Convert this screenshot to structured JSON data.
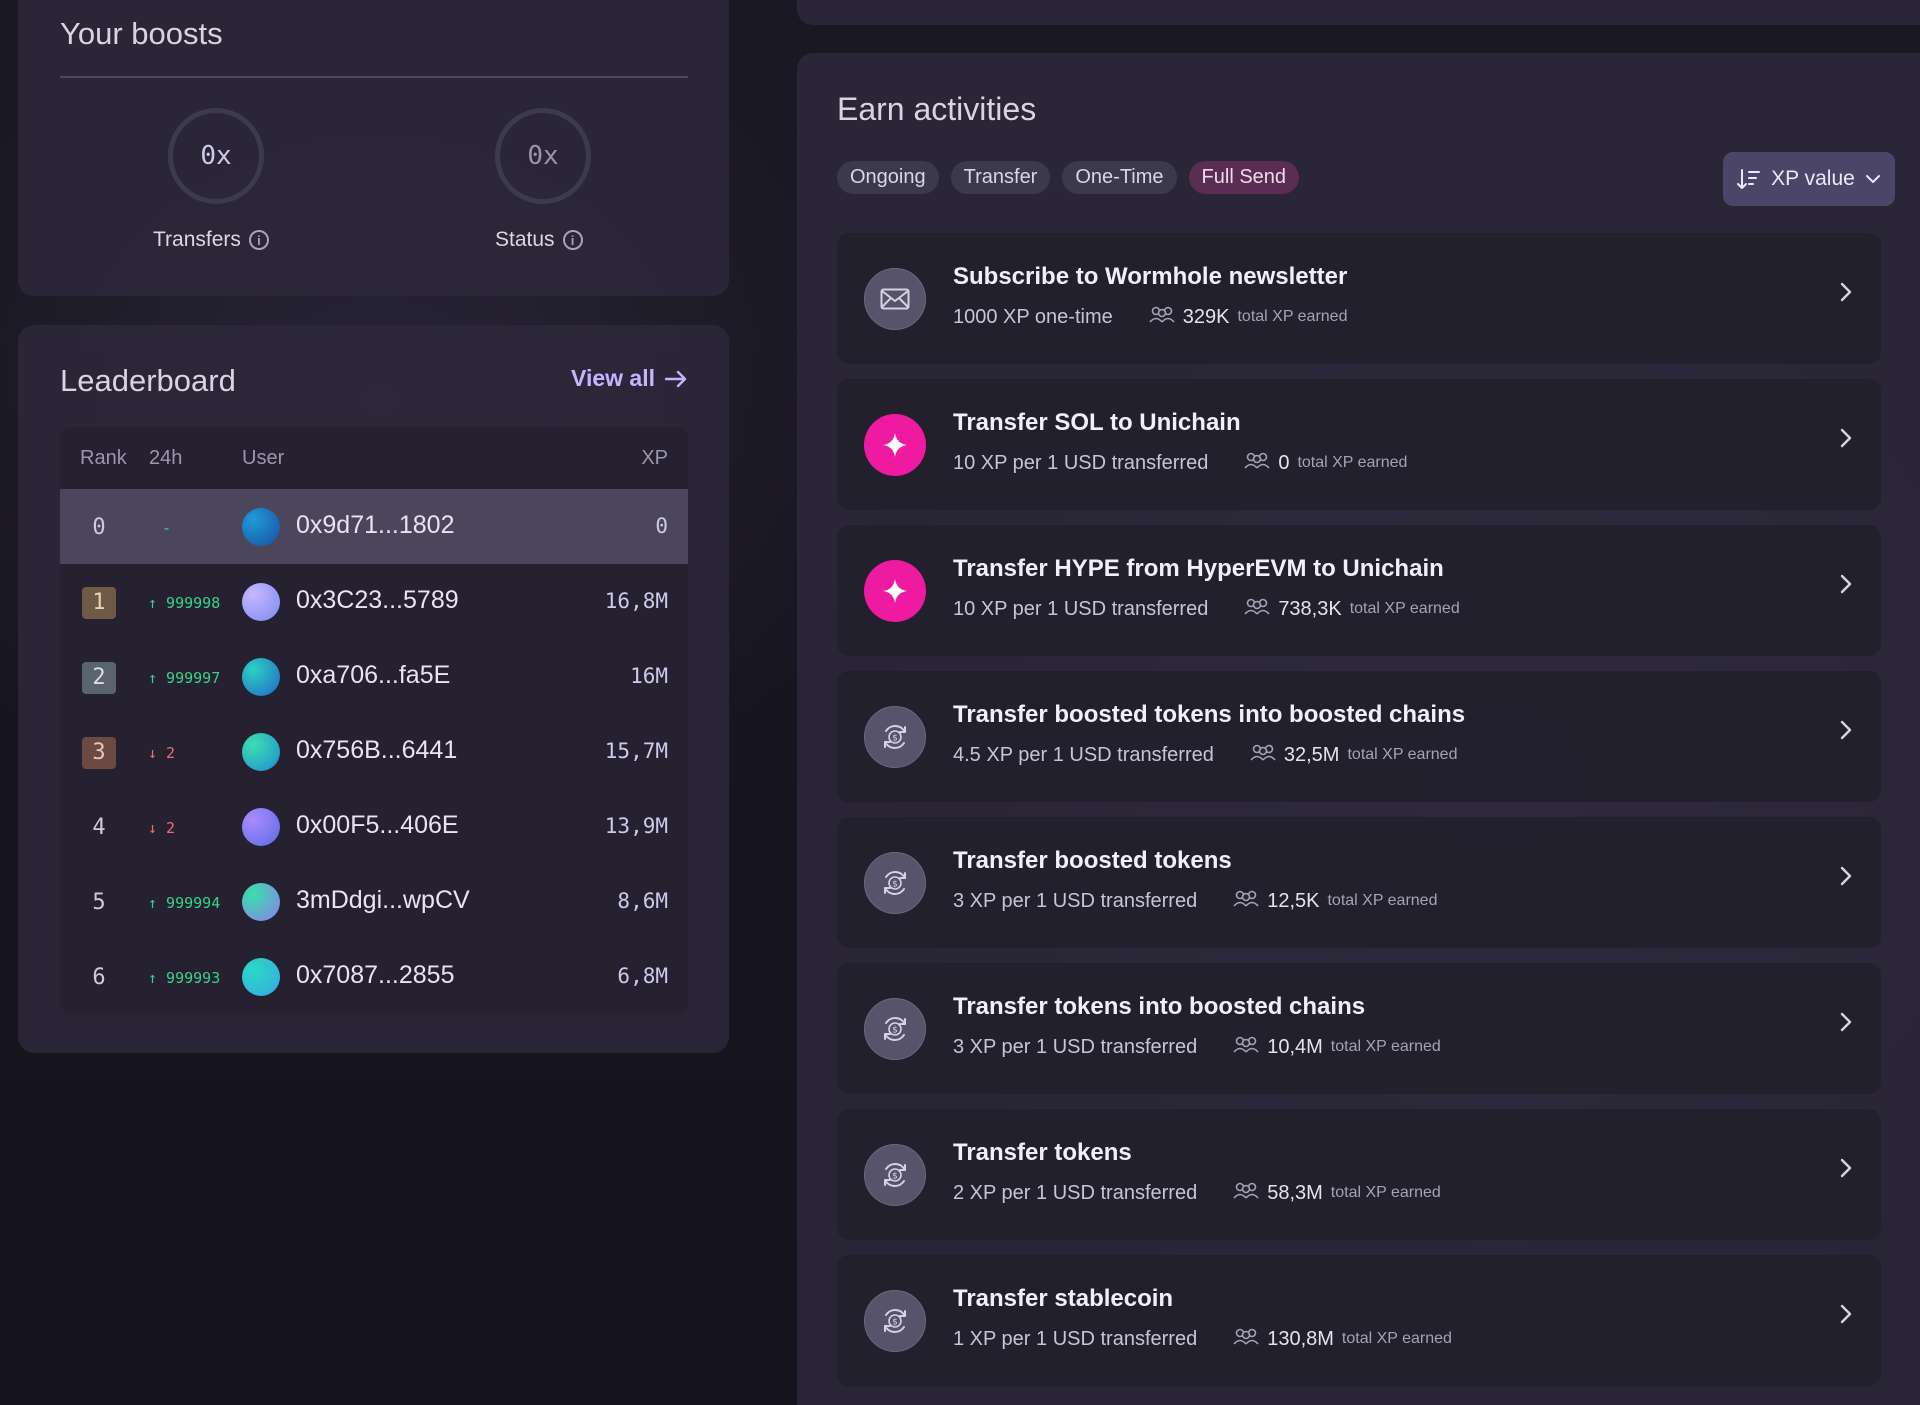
{
  "boosts": {
    "title": "Your boosts",
    "transfers": {
      "value": "0x",
      "label": "Transfers"
    },
    "status": {
      "value": "0x",
      "label": "Status"
    }
  },
  "leaderboard": {
    "title": "Leaderboard",
    "view_all": "View all",
    "columns": {
      "rank": "Rank",
      "change": "24h",
      "user": "User",
      "xp": "XP"
    },
    "rows": [
      {
        "rank": "0",
        "change": "-",
        "direction": "flat",
        "user": "0x9d71...1802",
        "xp": "0",
        "avatar": [
          "#1e9bd6",
          "#1a4fa0"
        ]
      },
      {
        "rank": "1",
        "change": "↑ 999998",
        "direction": "up",
        "user": "0x3C23...5789",
        "xp": "16,8M",
        "avatar": [
          "#c8b6ff",
          "#7a8cf0"
        ]
      },
      {
        "rank": "2",
        "change": "↑ 999997",
        "direction": "up",
        "user": "0xa706...fa5E",
        "xp": "16M",
        "avatar": [
          "#2bd1c1",
          "#2266c8"
        ]
      },
      {
        "rank": "3",
        "change": "↓ 2",
        "direction": "down",
        "user": "0x756B...6441",
        "xp": "15,7M",
        "avatar": [
          "#3ce0b0",
          "#1f8ad0"
        ]
      },
      {
        "rank": "4",
        "change": "↓ 2",
        "direction": "down",
        "user": "0x00F5...406E",
        "xp": "13,9M",
        "avatar": [
          "#a98bff",
          "#5b6ce0"
        ]
      },
      {
        "rank": "5",
        "change": "↑ 999994",
        "direction": "up",
        "user": "3mDdgi...wpCV",
        "xp": "8,6M",
        "avatar": [
          "#38e0a8",
          "#8d7cf0"
        ]
      },
      {
        "rank": "6",
        "change": "↑ 999993",
        "direction": "up",
        "user": "0x7087...2855",
        "xp": "6,8M",
        "avatar": [
          "#2ad9c6",
          "#3aa7e0"
        ]
      }
    ]
  },
  "earn": {
    "title": "Earn activities",
    "tabs": [
      "Ongoing",
      "Transfer",
      "One-Time",
      "Full Send"
    ],
    "active_tab": "Full Send",
    "sort_label": "XP value",
    "total_label": "total XP earned",
    "activities": [
      {
        "title": "Subscribe to Wormhole newsletter",
        "rate": "1000 XP one-time",
        "total": "329K",
        "icon": "envelope-icon"
      },
      {
        "title": "Transfer SOL to Unichain",
        "rate": "10 XP per 1 USD transferred",
        "total": "0",
        "icon": "sparkle-icon"
      },
      {
        "title": "Transfer HYPE from HyperEVM to Unichain",
        "rate": "10 XP per 1 USD transferred",
        "total": "738,3K",
        "icon": "sparkle-icon"
      },
      {
        "title": "Transfer boosted tokens into boosted chains",
        "rate": "4.5 XP per 1 USD transferred",
        "total": "32,5M",
        "icon": "dollar-cycle-icon"
      },
      {
        "title": "Transfer boosted tokens",
        "rate": "3 XP per 1 USD transferred",
        "total": "12,5K",
        "icon": "dollar-cycle-icon"
      },
      {
        "title": "Transfer tokens into boosted chains",
        "rate": "3 XP per 1 USD transferred",
        "total": "10,4M",
        "icon": "dollar-cycle-icon"
      },
      {
        "title": "Transfer tokens",
        "rate": "2 XP per 1 USD transferred",
        "total": "58,3M",
        "icon": "dollar-cycle-icon"
      },
      {
        "title": "Transfer stablecoin",
        "rate": "1 XP per 1 USD transferred",
        "total": "130,8M",
        "icon": "dollar-cycle-icon"
      }
    ]
  },
  "colors": {
    "accent": "#c3b6ff",
    "pink": "#ee1aa0",
    "up": "#38d28a",
    "down": "#f06a7a"
  }
}
